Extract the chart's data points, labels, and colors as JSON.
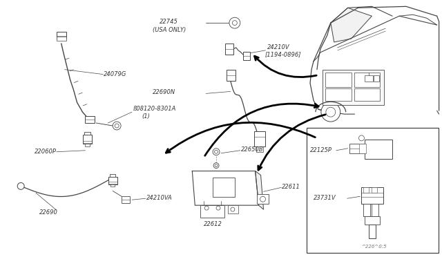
{
  "bg": "#ffffff",
  "lc": "#444444",
  "tc": "#333333",
  "fs": 6.0,
  "fig_w": 6.4,
  "fig_h": 3.72,
  "label_22745": "22745",
  "label_22745_sub": "(USA ONLY)",
  "label_24079G": "24079G",
  "label_08120": "ß08120-8301A",
  "label_08120b": "(1)",
  "label_22690N": "22690N",
  "label_24210V": "24210V",
  "label_24210V_sub": "[1194-0896]",
  "label_22060P": "22060P",
  "label_22690": "22690",
  "label_24210VA": "24210VA",
  "label_22650B": "22650B",
  "label_22611": "22611",
  "label_22612": "22612",
  "label_22125P": "22125P",
  "label_23731V": "23731V",
  "label_wm": "^226^0:5"
}
